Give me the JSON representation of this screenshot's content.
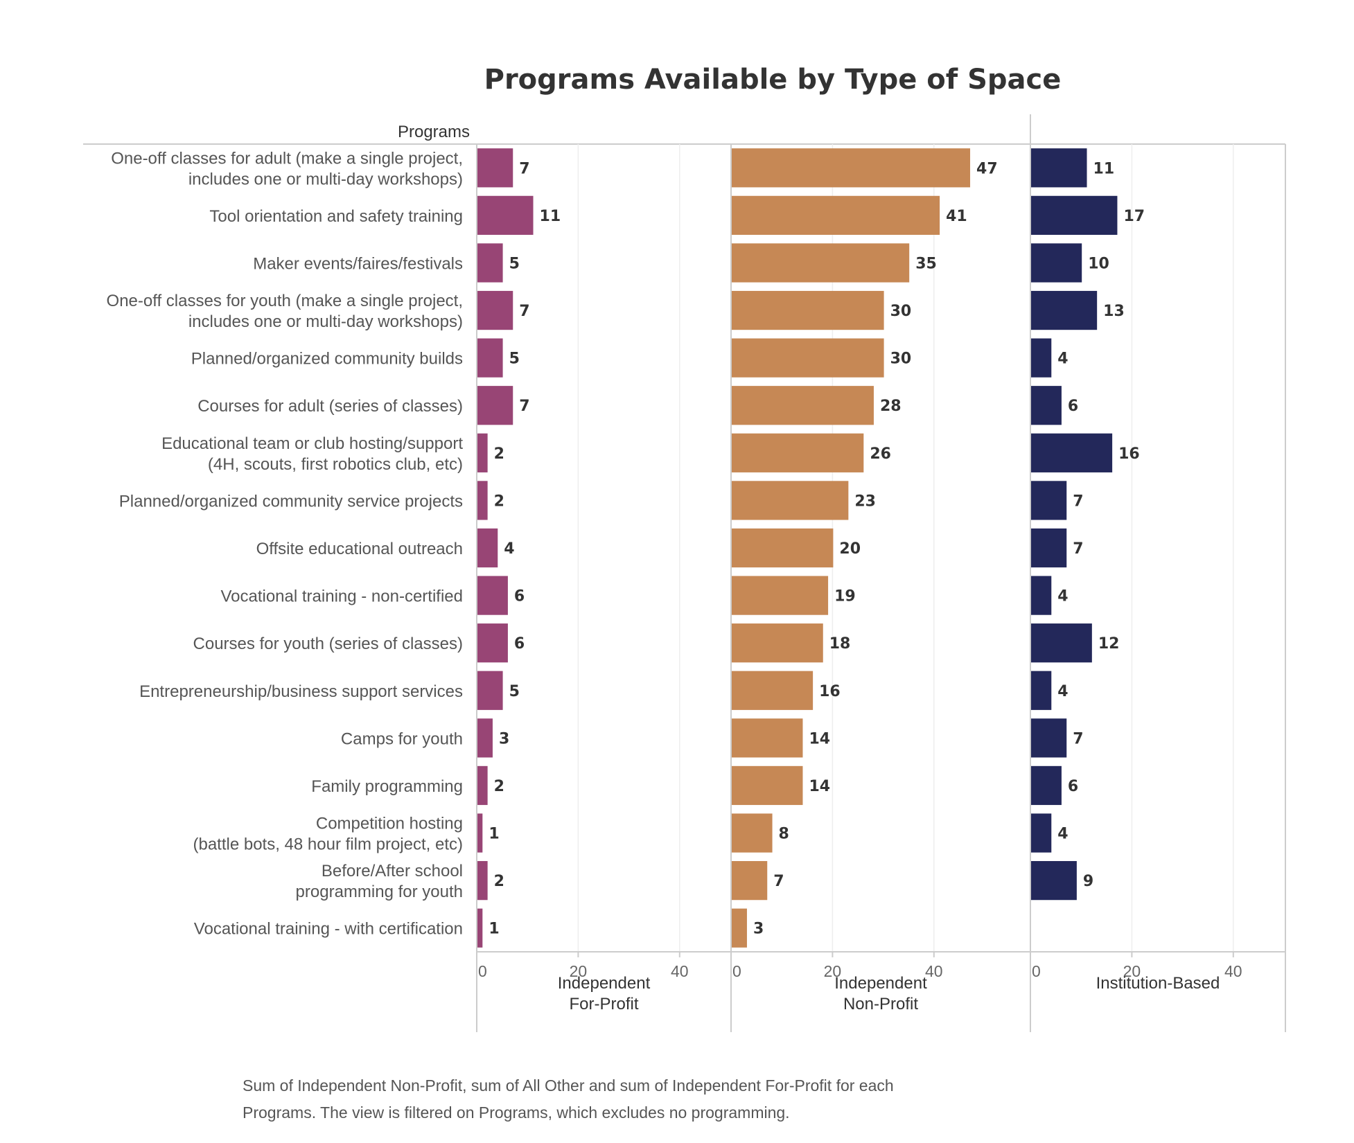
{
  "chart_data": {
    "type": "bar",
    "orientation": "horizontal",
    "title": "Programs Available by Type of Space",
    "row_header": "Programs",
    "categories": [
      [
        "One-off classes for adult (make a single project,",
        "includes one or multi-day workshops)"
      ],
      [
        "Tool orientation and safety training"
      ],
      [
        "Maker events/faires/festivals"
      ],
      [
        "One-off classes for youth (make a single project,",
        "includes one or multi-day workshops)"
      ],
      [
        "Planned/organized community builds"
      ],
      [
        "Courses for adult (series of classes)"
      ],
      [
        "Educational team or club hosting/support",
        "(4H, scouts, first robotics club, etc)"
      ],
      [
        "Planned/organized community service projects"
      ],
      [
        "Offsite educational outreach"
      ],
      [
        "Vocational training - non-certified"
      ],
      [
        "Courses for youth (series of classes)"
      ],
      [
        "Entrepreneurship/business support services"
      ],
      [
        "Camps for youth"
      ],
      [
        "Family programming"
      ],
      [
        "Competition hosting",
        "(battle bots, 48 hour film project, etc)"
      ],
      [
        "Before/After school",
        "programming for youth"
      ],
      [
        "Vocational training - with certification"
      ]
    ],
    "series": [
      {
        "name": [
          "Independent",
          "For-Profit"
        ],
        "color": "#984575",
        "values": [
          7,
          11,
          5,
          7,
          5,
          7,
          2,
          2,
          4,
          6,
          6,
          5,
          3,
          2,
          1,
          2,
          1
        ]
      },
      {
        "name": [
          "Independent",
          "Non-Profit"
        ],
        "color": "#C68855",
        "values": [
          47,
          41,
          35,
          30,
          30,
          28,
          26,
          23,
          20,
          19,
          18,
          16,
          14,
          14,
          8,
          7,
          3
        ]
      },
      {
        "name": [
          "Institution-Based"
        ],
        "color": "#23285A",
        "values": [
          11,
          17,
          10,
          13,
          4,
          6,
          16,
          7,
          7,
          4,
          12,
          4,
          7,
          6,
          4,
          9,
          null
        ]
      }
    ],
    "x_ticks": [
      0,
      20,
      40
    ],
    "xlim": [
      0,
      50
    ],
    "grid": true,
    "footnote": [
      "Sum of Independent Non-Profit, sum of All Other and sum of Independent For-Profit for each",
      "Programs. The view is filtered on Programs, which excludes no programming."
    ]
  }
}
